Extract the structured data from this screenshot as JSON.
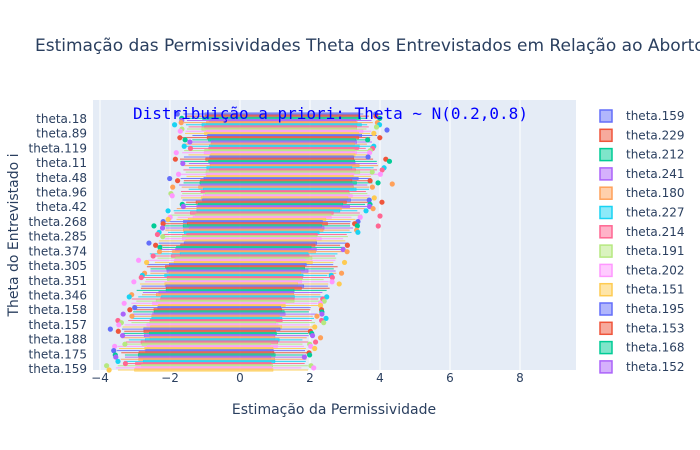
{
  "chart_data": {
    "type": "box",
    "orientation": "horizontal",
    "title": "Estimação das Permissividades Theta dos Entrevistados em Relação ao Aborto",
    "xlabel": "Estimação da Permissividade",
    "ylabel": "Theta do Entrevistado i",
    "annotation": "Distribuição a priori: Theta ~ N(0.2,0.8)",
    "xlim": [
      -4.2,
      9.6
    ],
    "x_ticks": [
      -4,
      -2,
      0,
      2,
      4,
      6,
      8
    ],
    "grid": true,
    "y_tick_labels": [
      "theta.18",
      "theta.89",
      "theta.119",
      "theta.11",
      "theta.48",
      "theta.96",
      "theta.42",
      "theta.268",
      "theta.285",
      "theta.374",
      "theta.305",
      "theta.351",
      "theta.346",
      "theta.158",
      "theta.157",
      "theta.188",
      "theta.175",
      "theta.159"
    ],
    "legend_position": "right",
    "legend_entries": [
      {
        "name": "theta.159",
        "color": "#636efa"
      },
      {
        "name": "theta.229",
        "color": "#ef553b"
      },
      {
        "name": "theta.212",
        "color": "#00cc96"
      },
      {
        "name": "theta.241",
        "color": "#ab63fa"
      },
      {
        "name": "theta.180",
        "color": "#ffa15a"
      },
      {
        "name": "theta.227",
        "color": "#19d3f3"
      },
      {
        "name": "theta.214",
        "color": "#ff6692"
      },
      {
        "name": "theta.191",
        "color": "#b6e880"
      },
      {
        "name": "theta.202",
        "color": "#ff97ff"
      },
      {
        "name": "theta.151",
        "color": "#fecb52"
      },
      {
        "name": "theta.195",
        "color": "#636efa"
      },
      {
        "name": "theta.153",
        "color": "#ef553b"
      },
      {
        "name": "theta.168",
        "color": "#00cc96"
      },
      {
        "name": "theta.152",
        "color": "#ab63fa"
      }
    ],
    "boxes_summary": [
      {
        "y": "theta.18",
        "q1": -1.0,
        "q3": 3.4,
        "whisker_low": -1.5,
        "whisker_high": 3.6
      },
      {
        "y": "theta.89",
        "q1": -1.0,
        "q3": 3.4,
        "whisker_low": -1.5,
        "whisker_high": 3.8
      },
      {
        "y": "theta.119",
        "q1": -0.9,
        "q3": 3.3,
        "whisker_low": -1.5,
        "whisker_high": 3.7
      },
      {
        "y": "theta.11",
        "q1": -0.9,
        "q3": 3.3,
        "whisker_low": -1.6,
        "whisker_high": 3.8
      },
      {
        "y": "theta.48",
        "q1": -1.0,
        "q3": 3.3,
        "whisker_low": -1.6,
        "whisker_high": 3.8
      },
      {
        "y": "theta.96",
        "q1": -1.1,
        "q3": 3.2,
        "whisker_low": -1.6,
        "whisker_high": 3.7
      },
      {
        "y": "theta.42",
        "q1": -1.2,
        "q3": 3.0,
        "whisker_low": -1.7,
        "whisker_high": 3.6
      },
      {
        "y": "theta.268",
        "q1": -1.5,
        "q3": 2.4,
        "whisker_low": -2.0,
        "whisker_high": 3.2
      },
      {
        "y": "theta.285",
        "q1": -1.6,
        "q3": 2.3,
        "whisker_low": -2.2,
        "whisker_high": 3.1
      },
      {
        "y": "theta.374",
        "q1": -1.8,
        "q3": 2.1,
        "whisker_low": -2.4,
        "whisker_high": 2.9
      },
      {
        "y": "theta.305",
        "q1": -2.0,
        "q3": 1.9,
        "whisker_low": -2.6,
        "whisker_high": 2.7
      },
      {
        "y": "theta.351",
        "q1": -2.1,
        "q3": 1.8,
        "whisker_low": -2.7,
        "whisker_high": 2.5
      },
      {
        "y": "theta.346",
        "q1": -2.3,
        "q3": 1.6,
        "whisker_low": -2.9,
        "whisker_high": 2.4
      },
      {
        "y": "theta.158",
        "q1": -2.5,
        "q3": 1.2,
        "whisker_low": -3.1,
        "whisker_high": 2.1
      },
      {
        "y": "theta.157",
        "q1": -2.6,
        "q3": 1.1,
        "whisker_low": -3.2,
        "whisker_high": 2.0
      },
      {
        "y": "theta.188",
        "q1": -2.7,
        "q3": 1.0,
        "whisker_low": -3.3,
        "whisker_high": 1.9
      },
      {
        "y": "theta.175",
        "q1": -2.8,
        "q3": 0.9,
        "whisker_low": -3.4,
        "whisker_high": 1.8
      },
      {
        "y": "theta.159",
        "q1": -2.9,
        "q3": 0.9,
        "whisker_low": -3.4,
        "whisker_high": 1.8
      }
    ]
  }
}
